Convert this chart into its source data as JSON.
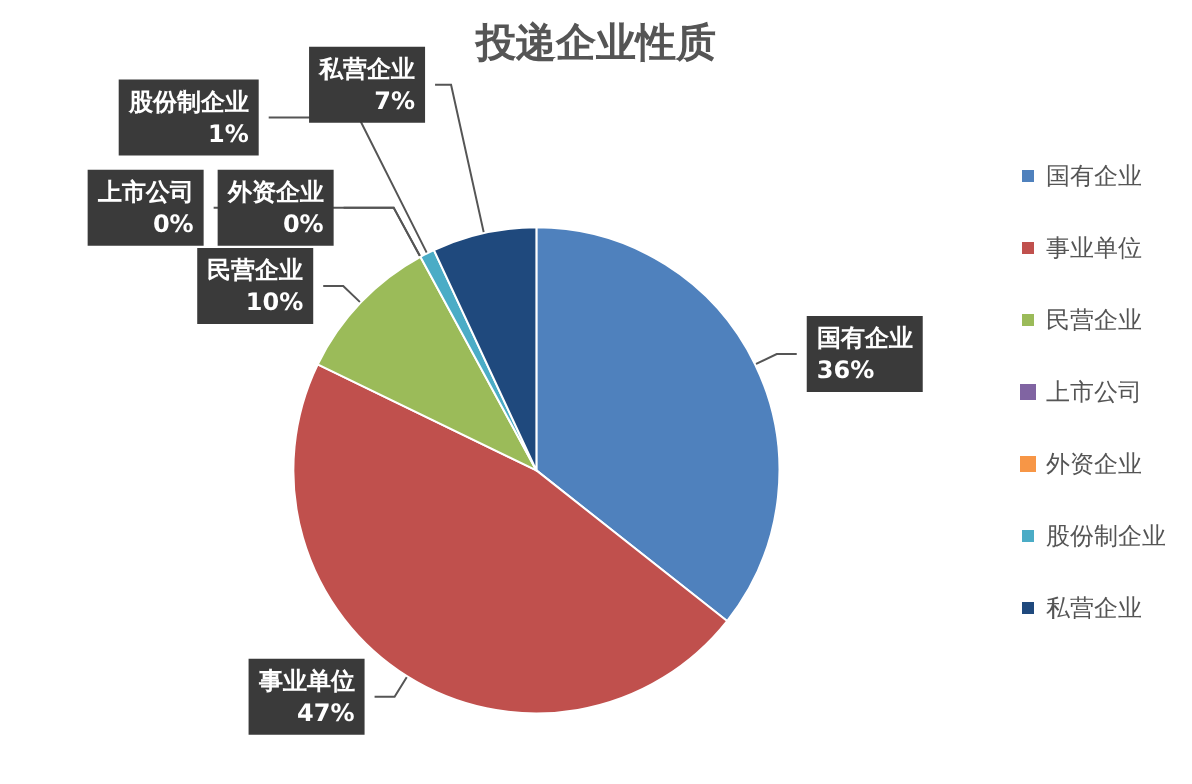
{
  "chart_data": {
    "type": "pie",
    "title": "投递企业性质",
    "categories": [
      "国有企业",
      "事业单位",
      "民营企业",
      "上市公司",
      "外资企业",
      "股份制企业",
      "私营企业"
    ],
    "values": [
      36,
      47,
      10,
      0,
      0,
      1,
      7
    ],
    "value_labels": [
      "36%",
      "47%",
      "10%",
      "0%",
      "0%",
      "1%",
      "7%"
    ],
    "colors": [
      "#4f81bd",
      "#c0504d",
      "#9bbb59",
      "#8064a2",
      "#f79646",
      "#4bacc6",
      "#1f497d"
    ],
    "legend": "right"
  }
}
